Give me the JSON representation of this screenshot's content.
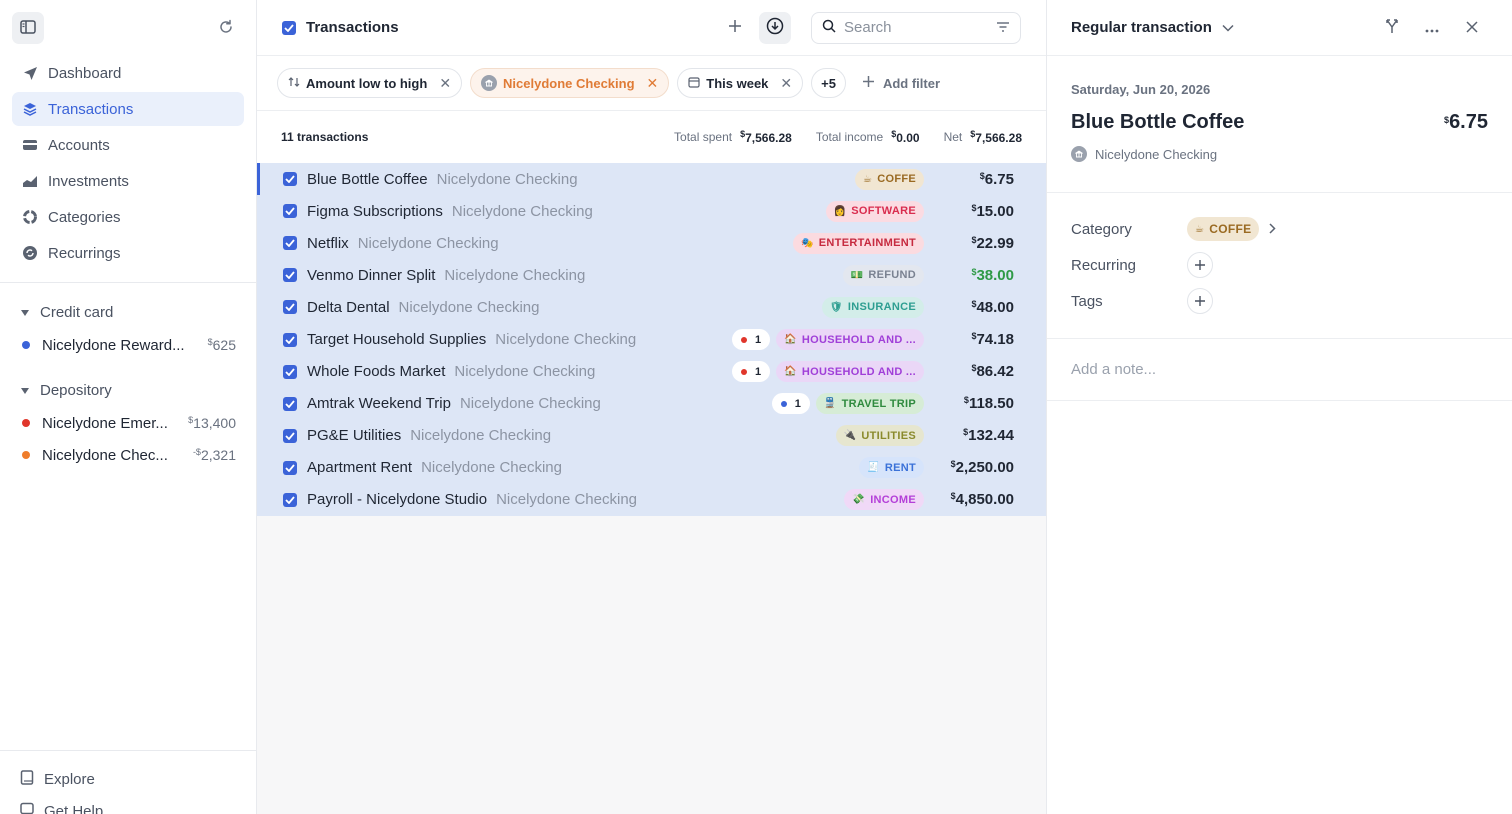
{
  "sidebar": {
    "nav": [
      {
        "label": "Dashboard",
        "icon": "paper-plane-icon"
      },
      {
        "label": "Transactions",
        "icon": "layers-icon",
        "active": true
      },
      {
        "label": "Accounts",
        "icon": "card-icon"
      },
      {
        "label": "Investments",
        "icon": "chart-icon"
      },
      {
        "label": "Categories",
        "icon": "donut-icon"
      },
      {
        "label": "Recurrings",
        "icon": "repeat-icon"
      }
    ],
    "groups": [
      {
        "label": "Credit card",
        "accounts": [
          {
            "name": "Nicelydone Reward...",
            "currency": "$",
            "balance": "625",
            "color": "#3b63d8"
          }
        ]
      },
      {
        "label": "Depository",
        "accounts": [
          {
            "name": "Nicelydone Emer...",
            "currency": "$",
            "balance": "13,400",
            "color": "#e0362b"
          },
          {
            "name": "Nicelydone Chec...",
            "currency": "-$",
            "balance": "2,321",
            "color": "#ef7d2b"
          }
        ]
      }
    ],
    "bottom": [
      {
        "label": "Explore"
      },
      {
        "label": "Get Help"
      }
    ]
  },
  "main": {
    "title": "Transactions",
    "search_placeholder": "Search",
    "filters": [
      {
        "label": "Amount low to high",
        "style": "plain"
      },
      {
        "label": "Nicelydone Checking",
        "style": "orange"
      },
      {
        "label": "This week",
        "style": "plain"
      }
    ],
    "more_filters": "+5",
    "add_filter": "Add filter",
    "summary": {
      "count": "11 transactions",
      "spent_label": "Total spent",
      "spent": "7,566.28",
      "income_label": "Total income",
      "income": "0.00",
      "net_label": "Net",
      "net": "7,566.28",
      "currency": "$"
    },
    "rows": [
      {
        "title": "Blue Bottle Coffee",
        "account": "Nicelydone Checking",
        "tag": "COFFE",
        "emoji": "☕",
        "tag_bg": "#f1e6d2",
        "tag_fg": "#9a6a22",
        "amount": "6.75",
        "green": false,
        "badge": null
      },
      {
        "title": "Figma Subscriptions",
        "account": "Nicelydone Checking",
        "tag": "SOFTWARE",
        "emoji": "👩",
        "tag_bg": "#fbdbe2",
        "tag_fg": "#d92d4f",
        "amount": "15.00",
        "green": false,
        "badge": null
      },
      {
        "title": "Netflix",
        "account": "Nicelydone Checking",
        "tag": "ENTERTAINMENT",
        "emoji": "🎭",
        "tag_bg": "#fbdbe0",
        "tag_fg": "#c62a3f",
        "amount": "22.99",
        "green": false,
        "badge": null
      },
      {
        "title": "Venmo Dinner Split",
        "account": "Nicelydone Checking",
        "tag": "REFUND",
        "emoji": "💵",
        "tag_bg": "#e3e7ef",
        "tag_fg": "#7a8291",
        "amount": "38.00",
        "green": true,
        "badge": null
      },
      {
        "title": "Delta Dental",
        "account": "Nicelydone Checking",
        "tag": "INSURANCE",
        "emoji": "🛡",
        "tag_bg": "#d3ede9",
        "tag_fg": "#2e9e91",
        "amount": "48.00",
        "green": false,
        "badge": null
      },
      {
        "title": "Target Household Supplies",
        "account": "Nicelydone Checking",
        "tag": "HOUSEHOLD AND ...",
        "emoji": "🏠",
        "tag_bg": "#ead7f7",
        "tag_fg": "#a03fd8",
        "amount": "74.18",
        "green": false,
        "badge": {
          "count": "1",
          "color": "#e0362b"
        }
      },
      {
        "title": "Whole Foods Market",
        "account": "Nicelydone Checking",
        "tag": "HOUSEHOLD AND ...",
        "emoji": "🏠",
        "tag_bg": "#ead7f7",
        "tag_fg": "#a03fd8",
        "amount": "86.42",
        "green": false,
        "badge": {
          "count": "1",
          "color": "#e0362b"
        }
      },
      {
        "title": "Amtrak Weekend Trip",
        "account": "Nicelydone Checking",
        "tag": "TRAVEL TRIP",
        "emoji": "🚆",
        "tag_bg": "#d6ecd6",
        "tag_fg": "#2f8a3e",
        "amount": "118.50",
        "green": false,
        "badge": {
          "count": "1",
          "color": "#3b63d8"
        }
      },
      {
        "title": "PG&E Utilities",
        "account": "Nicelydone Checking",
        "tag": "UTILITIES",
        "emoji": "🔌",
        "tag_bg": "#e6e6cf",
        "tag_fg": "#8a8a2c",
        "amount": "132.44",
        "green": false,
        "badge": null
      },
      {
        "title": "Apartment Rent",
        "account": "Nicelydone Checking",
        "tag": "RENT",
        "emoji": "🧾",
        "tag_bg": "#d6e4fb",
        "tag_fg": "#3b72d8",
        "amount": "2,250.00",
        "green": false,
        "badge": null
      },
      {
        "title": "Payroll - Nicelydone Studio",
        "account": "Nicelydone Checking",
        "tag": "INCOME",
        "emoji": "💸",
        "tag_bg": "#f0d9f7",
        "tag_fg": "#b43fd8",
        "amount": "4,850.00",
        "green": false,
        "badge": null
      }
    ]
  },
  "detail": {
    "type_label": "Regular transaction",
    "date": "Saturday, Jun 20, 2026",
    "merchant": "Blue Bottle Coffee",
    "currency": "$",
    "amount": "6.75",
    "account": "Nicelydone Checking",
    "category_label": "Category",
    "category_tag": "COFFE",
    "category_emoji": "☕",
    "recurring_label": "Recurring",
    "tags_label": "Tags",
    "note_placeholder": "Add a note..."
  },
  "colors": {
    "accent": "#3b63d8",
    "selected_row": "#dde6f6",
    "income_green": "#2f9a47",
    "filter_orange": "#e07b36"
  }
}
